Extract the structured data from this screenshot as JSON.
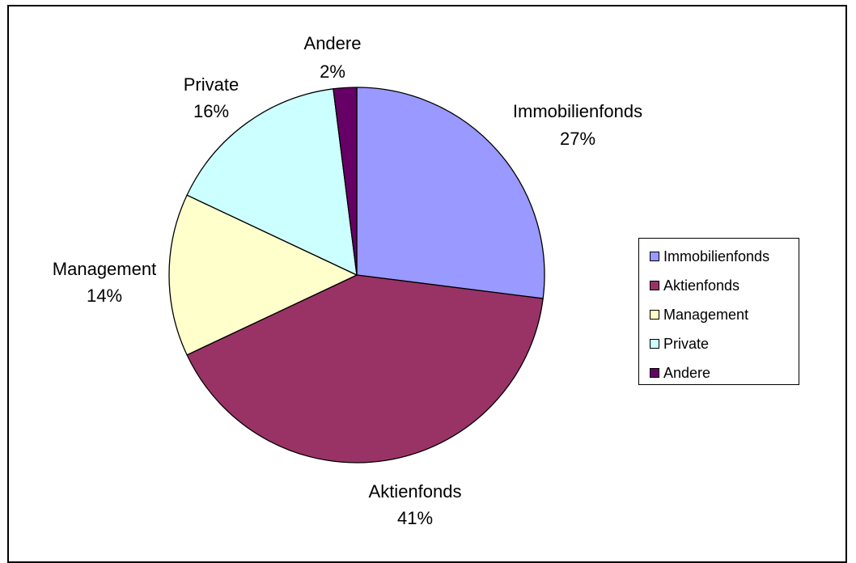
{
  "chart_data": {
    "type": "pie",
    "title": "",
    "slices": [
      {
        "label": "Immobilienfonds",
        "value": 27,
        "percent_label": "27%",
        "color": "#9999FF"
      },
      {
        "label": "Aktienfonds",
        "value": 41,
        "percent_label": "41%",
        "color": "#993366"
      },
      {
        "label": "Management",
        "value": 14,
        "percent_label": "14%",
        "color": "#FFFFCC"
      },
      {
        "label": "Private",
        "value": 16,
        "percent_label": "16%",
        "color": "#CCFFFF"
      },
      {
        "label": "Andere",
        "value": 2,
        "percent_label": "2%",
        "color": "#660066"
      }
    ],
    "legend": {
      "position": "right",
      "items": [
        "Immobilienfonds",
        "Aktienfonds",
        "Management",
        "Private",
        "Andere"
      ]
    }
  }
}
